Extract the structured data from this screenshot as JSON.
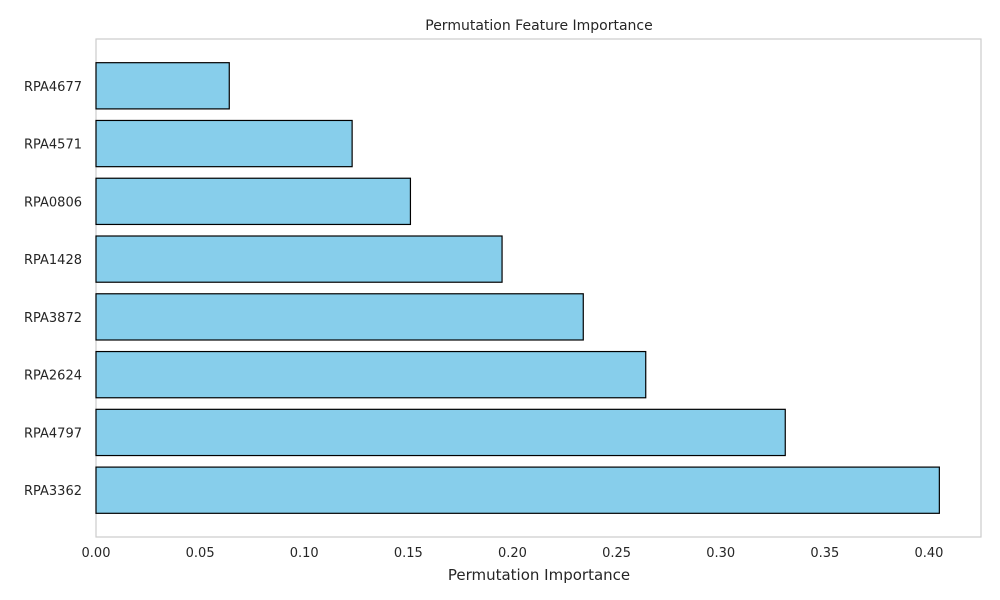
{
  "chart_data": {
    "type": "bar",
    "orientation": "horizontal",
    "title": "Permutation Feature Importance",
    "xlabel": "Permutation Importance",
    "ylabel": "",
    "categories": [
      "RPA4677",
      "RPA4571",
      "RPA0806",
      "RPA1428",
      "RPA3872",
      "RPA2624",
      "RPA4797",
      "RPA3362"
    ],
    "values": [
      0.064,
      0.123,
      0.151,
      0.195,
      0.234,
      0.264,
      0.331,
      0.405
    ],
    "xlim": [
      0.0,
      0.425
    ],
    "xticks": [
      0.0,
      0.05,
      0.1,
      0.15,
      0.2,
      0.25,
      0.3,
      0.35,
      0.4
    ],
    "xtick_labels": [
      "0.00",
      "0.05",
      "0.10",
      "0.15",
      "0.20",
      "0.25",
      "0.30",
      "0.35",
      "0.40"
    ],
    "grid": false,
    "legend": "none",
    "colors": {
      "bar_fill": "#87ceeb",
      "bar_edge": "#000000",
      "axes_frame": "#cccccc",
      "text": "#262626"
    }
  }
}
